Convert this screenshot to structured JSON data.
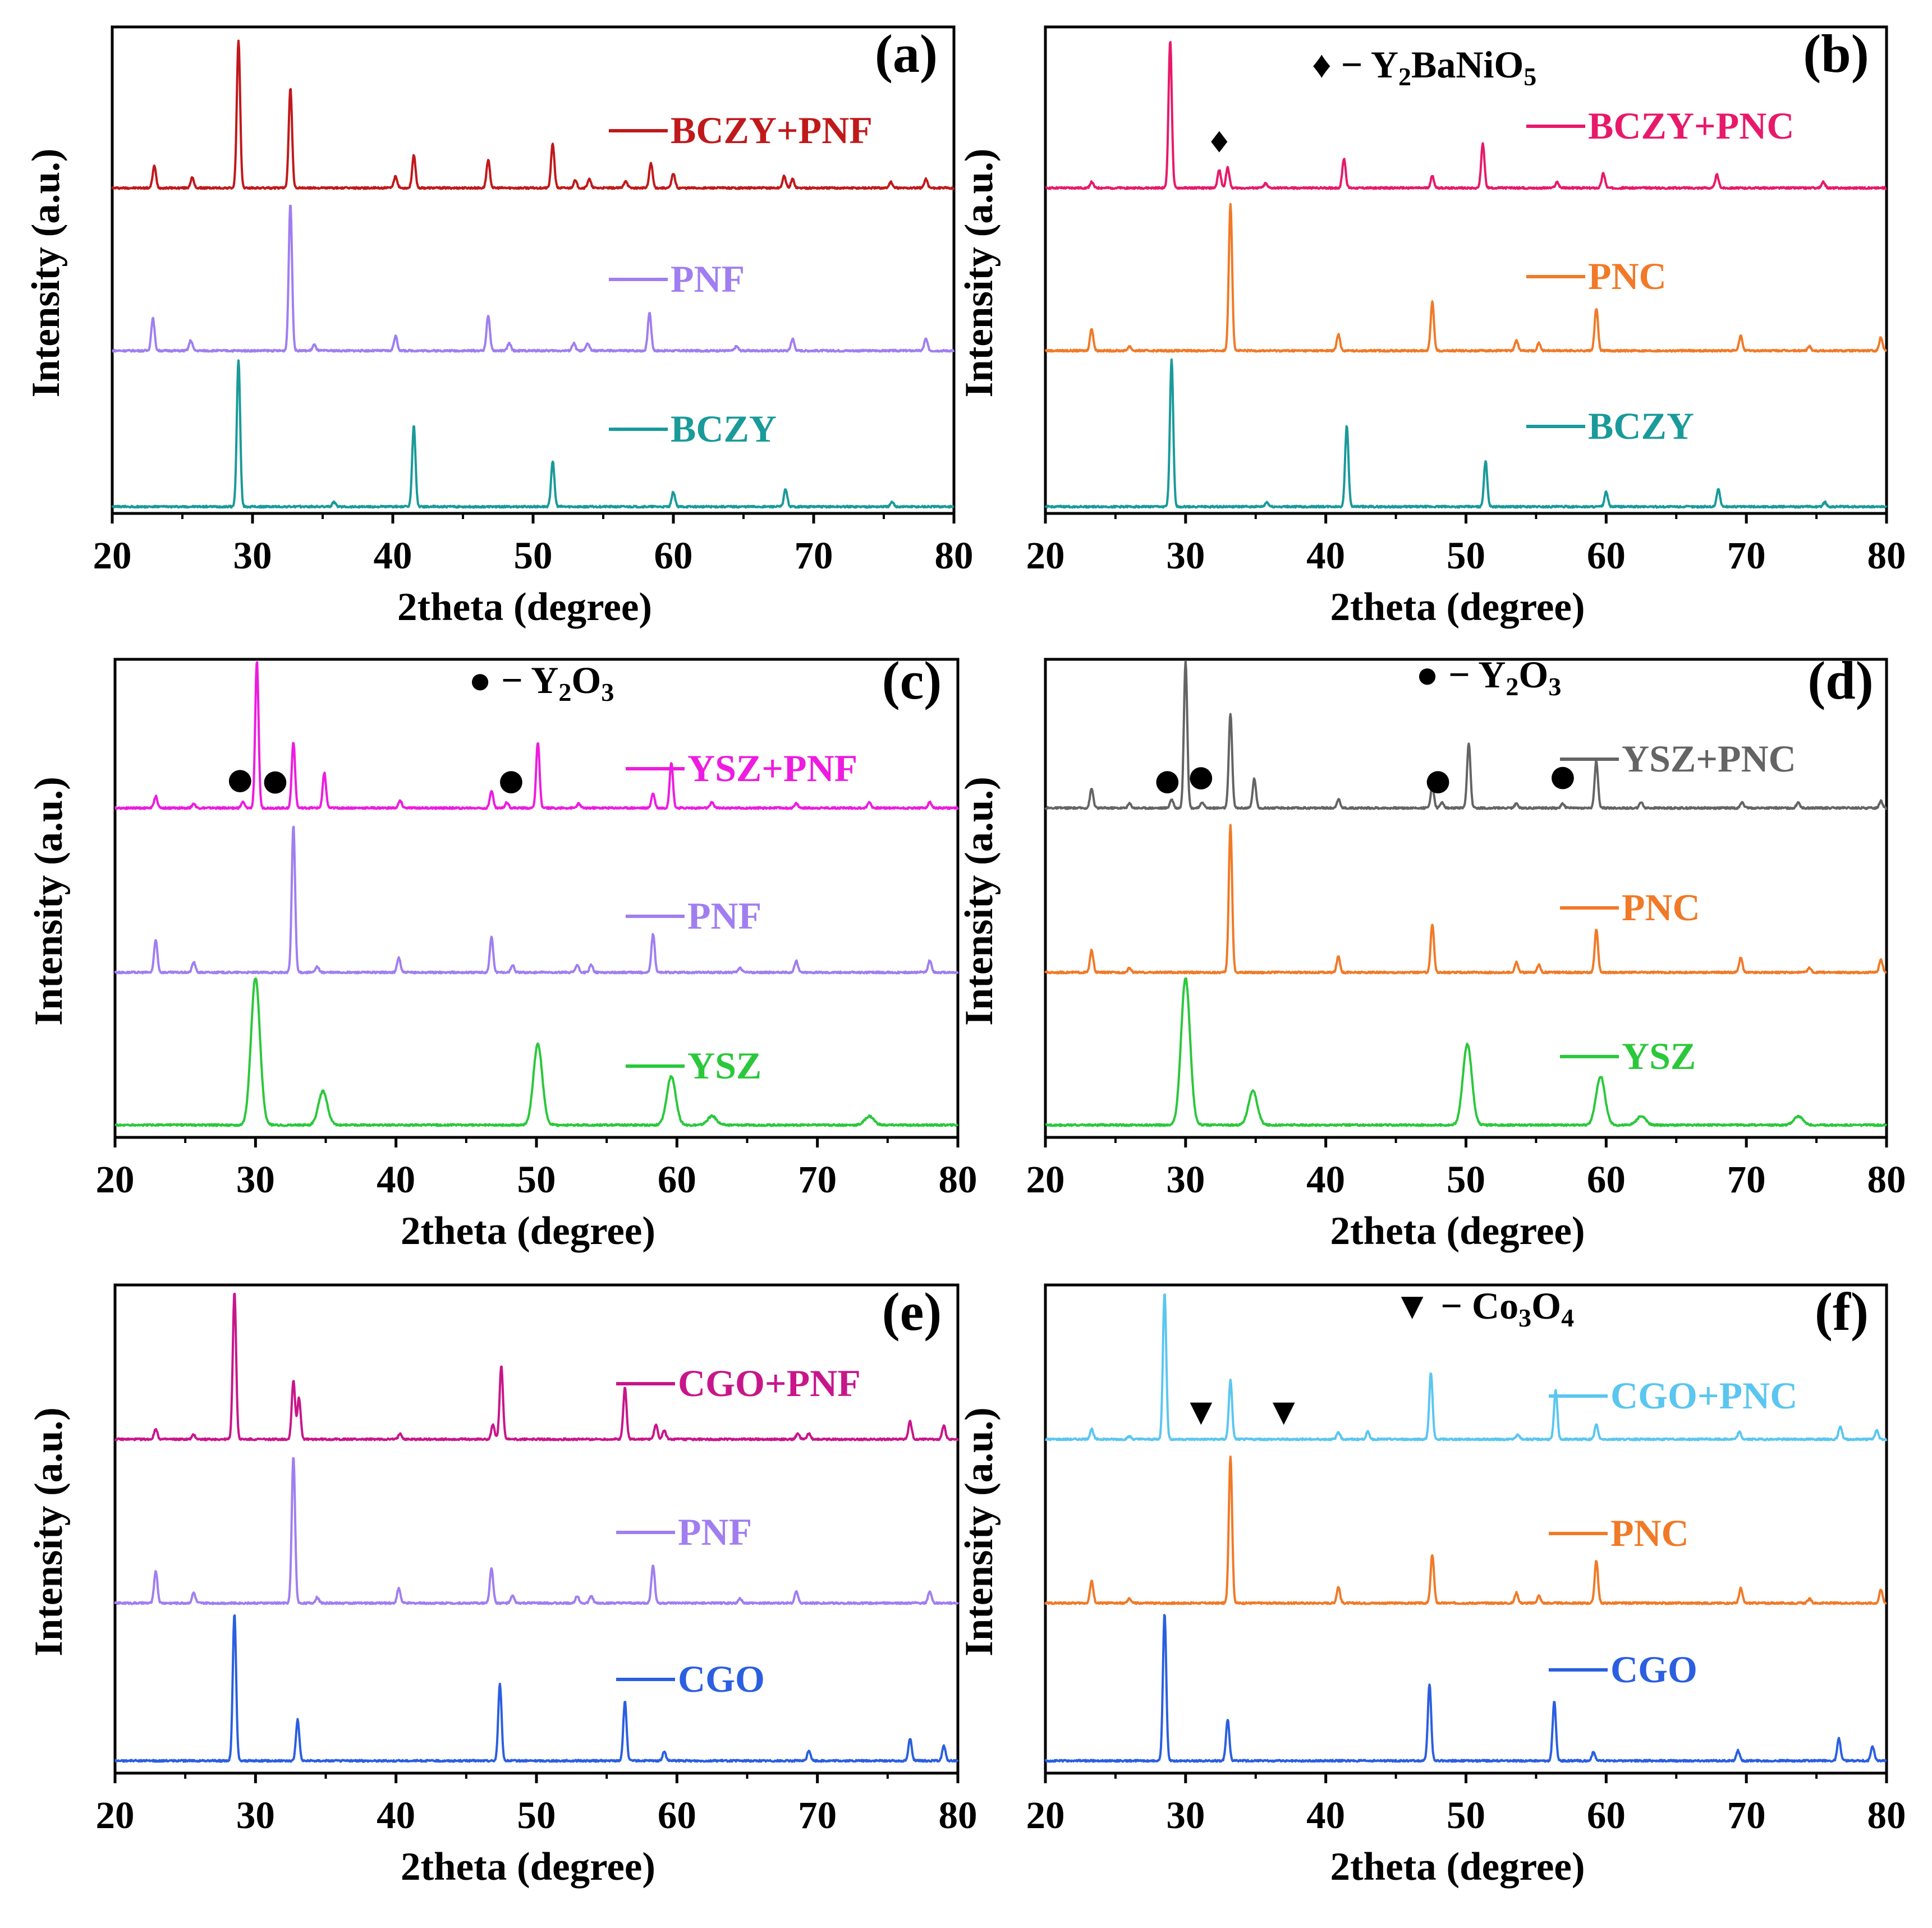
{
  "chart_data": [
    {
      "type": "line",
      "panel_label": "(a)",
      "xlabel": "2theta (degree)",
      "ylabel": "Intensity (a.u.)",
      "xlim": [
        20,
        80
      ],
      "xticks": [
        "20",
        "30",
        "40",
        "50",
        "60",
        "70",
        "80"
      ],
      "impurity": null,
      "series": [
        {
          "name": "BCZY+PNF",
          "color": "#c0191b",
          "peaks": [
            [
              23.0,
              0.15
            ],
            [
              25.7,
              0.07
            ],
            [
              29.0,
              1.0
            ],
            [
              32.7,
              0.68
            ],
            [
              40.2,
              0.08
            ],
            [
              41.5,
              0.22
            ],
            [
              46.8,
              0.19
            ],
            [
              51.4,
              0.3
            ],
            [
              53.0,
              0.05
            ],
            [
              54.0,
              0.06
            ],
            [
              56.6,
              0.05
            ],
            [
              58.4,
              0.17
            ],
            [
              60.0,
              0.1
            ],
            [
              67.9,
              0.08
            ],
            [
              68.5,
              0.06
            ],
            [
              75.5,
              0.04
            ],
            [
              78.0,
              0.06
            ]
          ]
        },
        {
          "name": "PNF",
          "color": "#a07ef0",
          "peaks": [
            [
              22.9,
              0.22
            ],
            [
              25.6,
              0.07
            ],
            [
              32.7,
              1.0
            ],
            [
              34.4,
              0.04
            ],
            [
              40.2,
              0.1
            ],
            [
              46.8,
              0.24
            ],
            [
              48.3,
              0.05
            ],
            [
              52.9,
              0.05
            ],
            [
              53.9,
              0.05
            ],
            [
              58.3,
              0.26
            ],
            [
              64.5,
              0.03
            ],
            [
              68.5,
              0.08
            ],
            [
              78.0,
              0.08
            ]
          ]
        },
        {
          "name": "BCZY",
          "color": "#1a9a9a",
          "peaks": [
            [
              29.0,
              1.0
            ],
            [
              35.8,
              0.03
            ],
            [
              41.5,
              0.55
            ],
            [
              51.4,
              0.31
            ],
            [
              60.0,
              0.1
            ],
            [
              68.0,
              0.12
            ],
            [
              75.6,
              0.03
            ]
          ]
        }
      ],
      "impurity_markers": []
    },
    {
      "type": "line",
      "panel_label": "(b)",
      "xlabel": "2theta (degree)",
      "ylabel": "Intensity (a.u.)",
      "xlim": [
        20,
        80
      ],
      "xticks": [
        "20",
        "30",
        "40",
        "50",
        "60",
        "70",
        "80"
      ],
      "impurity": {
        "symbol": "♦",
        "prefix": "− Y",
        "sub1": "2",
        "mid": "BaNiO",
        "sub2": "5"
      },
      "series": [
        {
          "name": "BCZY+PNC",
          "color": "#e8196a",
          "peaks": [
            [
              23.3,
              0.04
            ],
            [
              28.9,
              1.0
            ],
            [
              32.4,
              0.12
            ],
            [
              33.0,
              0.14
            ],
            [
              35.7,
              0.03
            ],
            [
              41.3,
              0.2
            ],
            [
              47.6,
              0.08
            ],
            [
              51.2,
              0.3
            ],
            [
              56.5,
              0.04
            ],
            [
              59.8,
              0.1
            ],
            [
              67.9,
              0.09
            ],
            [
              75.5,
              0.04
            ]
          ]
        },
        {
          "name": "PNC",
          "color": "#f07a28",
          "peaks": [
            [
              23.3,
              0.15
            ],
            [
              26.0,
              0.03
            ],
            [
              33.2,
              1.0
            ],
            [
              40.9,
              0.11
            ],
            [
              47.6,
              0.33
            ],
            [
              53.6,
              0.07
            ],
            [
              55.2,
              0.05
            ],
            [
              59.3,
              0.29
            ],
            [
              69.6,
              0.1
            ],
            [
              74.5,
              0.03
            ],
            [
              79.6,
              0.09
            ]
          ]
        },
        {
          "name": "BCZY",
          "color": "#1a9a9a",
          "peaks": [
            [
              29.0,
              1.0
            ],
            [
              35.8,
              0.03
            ],
            [
              41.5,
              0.55
            ],
            [
              51.4,
              0.31
            ],
            [
              60.0,
              0.1
            ],
            [
              68.0,
              0.12
            ],
            [
              75.6,
              0.03
            ]
          ]
        }
      ],
      "impurity_markers": [
        {
          "symbol": "♦",
          "x": 32.4,
          "series": 0
        }
      ]
    },
    {
      "type": "line",
      "panel_label": "(c)",
      "xlabel": "2theta (degree)",
      "ylabel": "Intensity (a.u.)",
      "xlim": [
        20,
        80
      ],
      "xticks": [
        "20",
        "30",
        "40",
        "50",
        "60",
        "70",
        "80"
      ],
      "impurity": {
        "symbol": "●",
        "prefix": "− Y",
        "sub1": "2",
        "mid": "O",
        "sub2": "3"
      },
      "series": [
        {
          "name": "YSZ+PNF",
          "color": "#ee1be0",
          "peaks": [
            [
              22.9,
              0.08
            ],
            [
              25.6,
              0.03
            ],
            [
              29.1,
              0.04
            ],
            [
              30.1,
              1.0
            ],
            [
              32.7,
              0.45
            ],
            [
              34.9,
              0.24
            ],
            [
              40.3,
              0.05
            ],
            [
              46.8,
              0.12
            ],
            [
              47.9,
              0.04
            ],
            [
              50.1,
              0.45
            ],
            [
              53.0,
              0.03
            ],
            [
              58.3,
              0.1
            ],
            [
              59.6,
              0.31
            ],
            [
              62.5,
              0.04
            ],
            [
              68.5,
              0.03
            ],
            [
              73.7,
              0.04
            ],
            [
              78.0,
              0.04
            ]
          ]
        },
        {
          "name": "PNF",
          "color": "#a07ef0",
          "peaks": [
            [
              22.9,
              0.22
            ],
            [
              25.6,
              0.07
            ],
            [
              32.7,
              1.0
            ],
            [
              34.4,
              0.04
            ],
            [
              40.2,
              0.1
            ],
            [
              46.8,
              0.24
            ],
            [
              48.3,
              0.05
            ],
            [
              52.9,
              0.05
            ],
            [
              53.9,
              0.05
            ],
            [
              58.3,
              0.26
            ],
            [
              64.5,
              0.03
            ],
            [
              68.5,
              0.08
            ],
            [
              78.0,
              0.08
            ]
          ]
        },
        {
          "name": "YSZ",
          "color": "#2bc83b",
          "peaks": [
            [
              30.0,
              1.0
            ],
            [
              34.8,
              0.23
            ],
            [
              50.1,
              0.55
            ],
            [
              59.6,
              0.33
            ],
            [
              62.5,
              0.06
            ],
            [
              73.7,
              0.06
            ]
          ]
        }
      ],
      "impurity_markers": [
        {
          "symbol": "●",
          "x": 28.9,
          "series": 0
        },
        {
          "symbol": "●",
          "x": 31.4,
          "series": 0
        },
        {
          "symbol": "●",
          "x": 48.2,
          "series": 0
        }
      ]
    },
    {
      "type": "line",
      "panel_label": "(d)",
      "xlabel": "2theta (degree)",
      "ylabel": "Intensity (a.u.)",
      "xlim": [
        20,
        80
      ],
      "xticks": [
        "20",
        "30",
        "40",
        "50",
        "60",
        "70",
        "80"
      ],
      "impurity": {
        "symbol": "●",
        "prefix": "− Y",
        "sub1": "2",
        "mid": "O",
        "sub2": "3"
      },
      "series": [
        {
          "name": "YSZ+PNC",
          "color": "#646464",
          "peaks": [
            [
              23.3,
              0.13
            ],
            [
              26.0,
              0.03
            ],
            [
              29.0,
              0.06
            ],
            [
              30.0,
              1.0
            ],
            [
              31.2,
              0.04
            ],
            [
              33.2,
              0.64
            ],
            [
              34.9,
              0.2
            ],
            [
              40.9,
              0.06
            ],
            [
              47.6,
              0.15
            ],
            [
              48.3,
              0.04
            ],
            [
              50.2,
              0.44
            ],
            [
              53.6,
              0.03
            ],
            [
              56.9,
              0.03
            ],
            [
              59.3,
              0.32
            ],
            [
              62.5,
              0.04
            ],
            [
              69.7,
              0.04
            ],
            [
              73.7,
              0.04
            ],
            [
              79.6,
              0.05
            ]
          ]
        },
        {
          "name": "PNC",
          "color": "#f07a28",
          "peaks": [
            [
              23.3,
              0.15
            ],
            [
              26.0,
              0.03
            ],
            [
              33.2,
              1.0
            ],
            [
              40.9,
              0.11
            ],
            [
              47.6,
              0.33
            ],
            [
              53.6,
              0.07
            ],
            [
              55.2,
              0.05
            ],
            [
              59.3,
              0.29
            ],
            [
              69.6,
              0.1
            ],
            [
              74.5,
              0.03
            ],
            [
              79.6,
              0.09
            ]
          ]
        },
        {
          "name": "YSZ",
          "color": "#2bc83b",
          "peaks": [
            [
              30.0,
              1.0
            ],
            [
              34.8,
              0.23
            ],
            [
              50.1,
              0.55
            ],
            [
              59.6,
              0.33
            ],
            [
              62.5,
              0.06
            ],
            [
              73.7,
              0.06
            ]
          ]
        }
      ],
      "impurity_markers": [
        {
          "symbol": "●",
          "x": 28.7,
          "series": 0
        },
        {
          "symbol": "●",
          "x": 31.1,
          "series": 0
        },
        {
          "symbol": "●",
          "x": 48.0,
          "series": 0
        },
        {
          "symbol": "●",
          "x": 56.9,
          "series": 0
        }
      ]
    },
    {
      "type": "line",
      "panel_label": "(e)",
      "xlabel": "2theta (degree)",
      "ylabel": "Intensity (a.u.)",
      "xlim": [
        20,
        80
      ],
      "xticks": [
        "20",
        "30",
        "40",
        "50",
        "60",
        "70",
        "80"
      ],
      "impurity": null,
      "series": [
        {
          "name": "CGO+PNF",
          "color": "#c8168a",
          "peaks": [
            [
              22.9,
              0.07
            ],
            [
              25.6,
              0.03
            ],
            [
              28.5,
              1.0
            ],
            [
              32.7,
              0.4
            ],
            [
              33.1,
              0.28
            ],
            [
              40.3,
              0.04
            ],
            [
              46.9,
              0.1
            ],
            [
              47.5,
              0.5
            ],
            [
              56.3,
              0.35
            ],
            [
              58.5,
              0.1
            ],
            [
              59.1,
              0.06
            ],
            [
              68.6,
              0.04
            ],
            [
              69.4,
              0.04
            ],
            [
              76.6,
              0.12
            ],
            [
              79.0,
              0.09
            ]
          ]
        },
        {
          "name": "PNF",
          "color": "#a07ef0",
          "peaks": [
            [
              22.9,
              0.22
            ],
            [
              25.6,
              0.07
            ],
            [
              32.7,
              1.0
            ],
            [
              34.4,
              0.04
            ],
            [
              40.2,
              0.1
            ],
            [
              46.8,
              0.24
            ],
            [
              48.3,
              0.05
            ],
            [
              52.9,
              0.05
            ],
            [
              53.9,
              0.05
            ],
            [
              58.3,
              0.26
            ],
            [
              64.5,
              0.03
            ],
            [
              68.5,
              0.08
            ],
            [
              78.0,
              0.08
            ]
          ]
        },
        {
          "name": "CGO",
          "color": "#2b5fe0",
          "peaks": [
            [
              28.5,
              1.0
            ],
            [
              33.0,
              0.28
            ],
            [
              47.4,
              0.52
            ],
            [
              56.3,
              0.4
            ],
            [
              59.1,
              0.06
            ],
            [
              69.4,
              0.07
            ],
            [
              76.6,
              0.15
            ],
            [
              79.0,
              0.1
            ]
          ]
        }
      ],
      "impurity_markers": []
    },
    {
      "type": "line",
      "panel_label": "(f)",
      "xlabel": "2theta (degree)",
      "ylabel": "Intensity (a.u.)",
      "xlim": [
        20,
        80
      ],
      "xticks": [
        "20",
        "30",
        "40",
        "50",
        "60",
        "70",
        "80"
      ],
      "impurity": {
        "symbol": "▼",
        "prefix": "− Co",
        "sub1": "3",
        "mid": "O",
        "sub2": "4"
      },
      "series": [
        {
          "name": "CGO+PNC",
          "color": "#5bc6f0",
          "peaks": [
            [
              23.3,
              0.07
            ],
            [
              26.0,
              0.02
            ],
            [
              28.5,
              1.0
            ],
            [
              33.2,
              0.4
            ],
            [
              40.9,
              0.05
            ],
            [
              43.0,
              0.05
            ],
            [
              47.5,
              0.45
            ],
            [
              53.7,
              0.03
            ],
            [
              56.4,
              0.33
            ],
            [
              59.3,
              0.1
            ],
            [
              69.5,
              0.05
            ],
            [
              76.7,
              0.09
            ],
            [
              79.3,
              0.06
            ]
          ]
        },
        {
          "name": "PNC",
          "color": "#f07a28",
          "peaks": [
            [
              23.3,
              0.15
            ],
            [
              26.0,
              0.03
            ],
            [
              33.2,
              1.0
            ],
            [
              40.9,
              0.11
            ],
            [
              47.6,
              0.33
            ],
            [
              53.6,
              0.07
            ],
            [
              55.2,
              0.05
            ],
            [
              59.3,
              0.29
            ],
            [
              69.6,
              0.1
            ],
            [
              74.5,
              0.03
            ],
            [
              79.6,
              0.09
            ]
          ]
        },
        {
          "name": "CGO",
          "color": "#2b5fe0",
          "peaks": [
            [
              28.5,
              1.0
            ],
            [
              33.0,
              0.28
            ],
            [
              47.4,
              0.52
            ],
            [
              56.3,
              0.4
            ],
            [
              59.1,
              0.06
            ],
            [
              69.4,
              0.07
            ],
            [
              76.6,
              0.15
            ],
            [
              79.0,
              0.1
            ]
          ]
        }
      ],
      "impurity_markers": [
        {
          "symbol": "▼",
          "x": 31.1,
          "series": 0
        },
        {
          "symbol": "▼",
          "x": 37.0,
          "series": 0
        }
      ]
    }
  ]
}
